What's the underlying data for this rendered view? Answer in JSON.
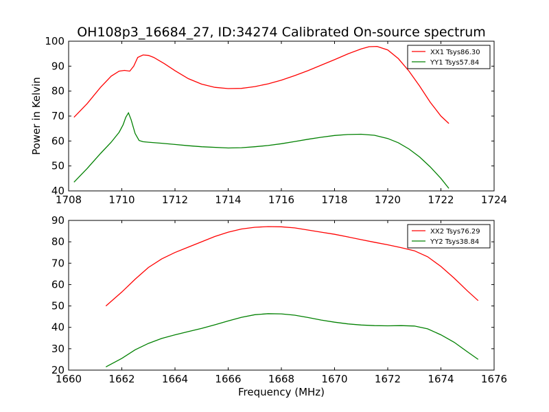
{
  "figure": {
    "title": "OH108p3_16684_27, ID:34274 Calibrated On-source spectrum",
    "ylabel": "Power in Kelvin",
    "xlabel": "Frequency (MHz)"
  },
  "chart_data": [
    {
      "type": "line",
      "title": "OH108p3_16684_27, ID:34274 Calibrated On-source spectrum",
      "ylabel": "Power in Kelvin",
      "xlabel": "",
      "xlim": [
        1708,
        1724
      ],
      "ylim": [
        40,
        100
      ],
      "xticks": [
        1708,
        1710,
        1712,
        1714,
        1716,
        1718,
        1720,
        1722,
        1724
      ],
      "yticks": [
        40,
        50,
        60,
        70,
        80,
        90,
        100
      ],
      "grid": false,
      "legend_position": "top-right",
      "series": [
        {
          "name": "XX1 Tsys86.30",
          "color": "#ff0000",
          "x": [
            1708.2,
            1708.7,
            1709.2,
            1709.6,
            1709.9,
            1710.1,
            1710.3,
            1710.45,
            1710.6,
            1710.8,
            1711.0,
            1711.2,
            1711.6,
            1712.0,
            1712.5,
            1713.0,
            1713.5,
            1714.0,
            1714.5,
            1715.0,
            1715.5,
            1716.0,
            1716.5,
            1717.0,
            1717.5,
            1718.0,
            1718.5,
            1719.0,
            1719.3,
            1719.6,
            1720.0,
            1720.4,
            1720.8,
            1721.2,
            1721.6,
            1722.0,
            1722.3
          ],
          "y": [
            69.5,
            75,
            81.5,
            86,
            88,
            88.3,
            88,
            90,
            93.5,
            94.5,
            94.3,
            93.5,
            91,
            88.2,
            85,
            82.8,
            81.5,
            81,
            81.1,
            81.8,
            82.9,
            84.4,
            86.2,
            88.2,
            90.4,
            92.6,
            94.9,
            96.9,
            97.8,
            97.9,
            96.5,
            93,
            88,
            82,
            75.5,
            70,
            67
          ]
        },
        {
          "name": "YY1 Tsys57.84",
          "color": "#008000",
          "x": [
            1708.2,
            1708.7,
            1709.2,
            1709.6,
            1709.9,
            1710.05,
            1710.15,
            1710.25,
            1710.35,
            1710.5,
            1710.65,
            1710.8,
            1711.0,
            1711.5,
            1712.0,
            1712.5,
            1713.0,
            1714.0,
            1714.5,
            1715.0,
            1715.5,
            1716.0,
            1716.5,
            1717.0,
            1717.5,
            1718.0,
            1718.5,
            1719.0,
            1719.5,
            1720.0,
            1720.4,
            1720.8,
            1721.2,
            1721.6,
            1722.0,
            1722.3
          ],
          "y": [
            43.5,
            49,
            55,
            59.5,
            63.5,
            66.5,
            69.5,
            71.3,
            68.5,
            63,
            60.2,
            59.7,
            59.5,
            59.1,
            58.6,
            58.1,
            57.7,
            57.2,
            57.3,
            57.7,
            58.2,
            58.9,
            59.8,
            60.7,
            61.5,
            62.2,
            62.6,
            62.7,
            62.3,
            61,
            59.3,
            56.8,
            53.6,
            49.6,
            45,
            41
          ]
        }
      ]
    },
    {
      "type": "line",
      "title": "",
      "ylabel": "",
      "xlabel": "Frequency (MHz)",
      "xlim": [
        1660,
        1676
      ],
      "ylim": [
        20,
        90
      ],
      "xticks": [
        1660,
        1662,
        1664,
        1666,
        1668,
        1670,
        1672,
        1674,
        1676
      ],
      "yticks": [
        20,
        30,
        40,
        50,
        60,
        70,
        80,
        90
      ],
      "grid": false,
      "legend_position": "top-right",
      "series": [
        {
          "name": "XX2 Tsys76.29",
          "color": "#ff0000",
          "x": [
            1661.4,
            1662.0,
            1662.5,
            1663.0,
            1663.5,
            1664.0,
            1664.5,
            1665.0,
            1665.5,
            1666.0,
            1666.5,
            1667.0,
            1667.5,
            1668.0,
            1668.5,
            1669.0,
            1669.5,
            1670.0,
            1670.5,
            1671.0,
            1671.5,
            1672.0,
            1672.5,
            1673.0,
            1673.5,
            1674.0,
            1674.5,
            1675.0,
            1675.4
          ],
          "y": [
            50,
            56.5,
            62.5,
            68,
            72,
            75,
            77.5,
            80,
            82.5,
            84.5,
            86,
            86.8,
            87.1,
            87,
            86.5,
            85.5,
            84.5,
            83.5,
            82.3,
            81,
            79.8,
            78.6,
            77.3,
            75.8,
            73,
            68.5,
            63,
            57,
            52.5
          ]
        },
        {
          "name": "YY2 Tsys38.84",
          "color": "#008000",
          "x": [
            1661.4,
            1662.0,
            1662.5,
            1663.0,
            1663.5,
            1664.0,
            1664.5,
            1665.0,
            1665.5,
            1666.0,
            1666.5,
            1667.0,
            1667.5,
            1668.0,
            1668.5,
            1669.0,
            1669.5,
            1670.0,
            1670.5,
            1671.0,
            1671.5,
            1672.0,
            1672.5,
            1673.0,
            1673.5,
            1674.0,
            1674.5,
            1675.0,
            1675.4
          ],
          "y": [
            21.5,
            25.5,
            29.5,
            32.5,
            34.8,
            36.5,
            38,
            39.5,
            41.2,
            43,
            44.7,
            45.9,
            46.4,
            46.3,
            45.7,
            44.6,
            43.4,
            42.4,
            41.6,
            41.1,
            40.8,
            40.7,
            40.8,
            40.6,
            39.3,
            36.5,
            33,
            28.5,
            25
          ]
        }
      ]
    }
  ]
}
